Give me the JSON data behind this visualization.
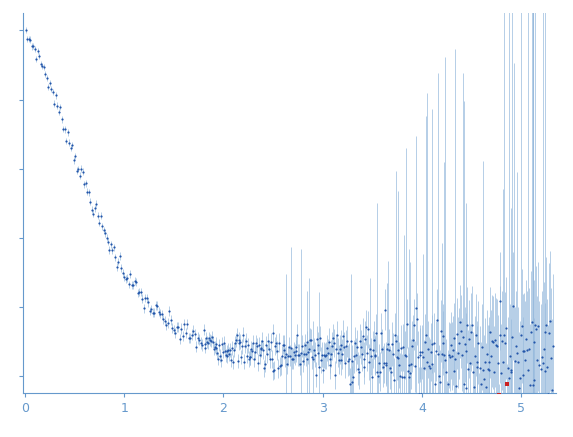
{
  "title": "",
  "xlabel": "",
  "ylabel": "",
  "xlim": [
    -0.02,
    5.35
  ],
  "ylim": [
    -0.05,
    1.05
  ],
  "dot_color": "#2255aa",
  "red_dot_color": "#cc2222",
  "error_color": "#99bbdd",
  "vline_color": "#99bbdd",
  "vline_x": 5.12,
  "background_color": "#ffffff",
  "axis_color": "#6699cc",
  "tick_color": "#6699cc",
  "xticks": [
    0,
    1,
    2,
    3,
    4,
    5
  ],
  "dot_size": 2.5,
  "errorbar_lw": 0.5,
  "n_points_low": 120,
  "n_points_high": 380,
  "seed": 7
}
